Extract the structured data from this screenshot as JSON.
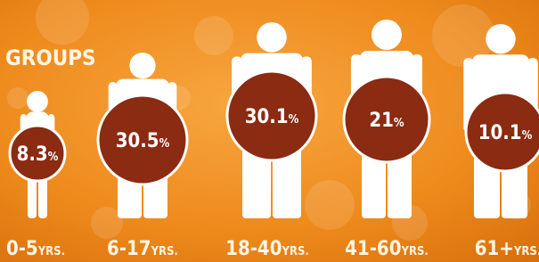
{
  "header": {
    "title": "GROUPS"
  },
  "groups": [
    {
      "value": "8.3",
      "unit": "%",
      "age": "0-5",
      "suffix": "YRS."
    },
    {
      "value": "30.5",
      "unit": "%",
      "age": "6-17",
      "suffix": "YRS."
    },
    {
      "value": "30.1",
      "unit": "%",
      "age": "18-40",
      "suffix": "YRS."
    },
    {
      "value": "21",
      "unit": "%",
      "age": "41-60",
      "suffix": "YRS."
    },
    {
      "value": "10.1",
      "unit": "%",
      "age": "61+",
      "suffix": "YRS."
    }
  ]
}
